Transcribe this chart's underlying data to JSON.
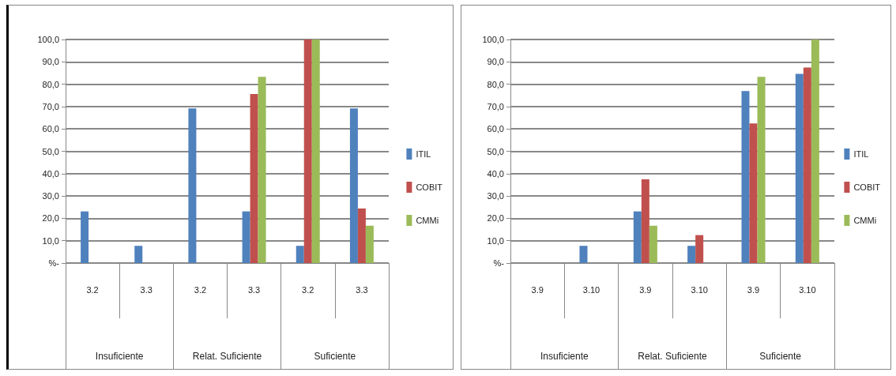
{
  "chart_data": [
    {
      "type": "bar",
      "categories": [
        "3.2",
        "3.3",
        "3.2",
        "3.3",
        "3.2",
        "3.3"
      ],
      "annotations": [
        "Insuficiente",
        "Relat. Suficiente",
        "Suficiente"
      ],
      "series": [
        {
          "name": "ITIL",
          "color": "#4f81bd",
          "values": [
            23.1,
            7.7,
            69.2,
            23.1,
            7.7,
            69.2
          ]
        },
        {
          "name": "COBIT",
          "color": "#c0504d",
          "values": [
            0,
            0,
            0,
            75.6,
            100,
            24.4
          ]
        },
        {
          "name": "CMMi",
          "color": "#9bbb59",
          "values": [
            0,
            0,
            0,
            83.3,
            100,
            16.7
          ]
        }
      ],
      "ylim": [
        0,
        100
      ],
      "yticks": [
        {
          "value": 0,
          "label": "%-"
        },
        {
          "value": 10,
          "label": "10,0"
        },
        {
          "value": 20,
          "label": "20,0"
        },
        {
          "value": 30,
          "label": "30,0"
        },
        {
          "value": 40,
          "label": "40,0"
        },
        {
          "value": 50,
          "label": "50,0"
        },
        {
          "value": 60,
          "label": "60,0"
        },
        {
          "value": 70,
          "label": "70,0"
        },
        {
          "value": 80,
          "label": "80,0"
        },
        {
          "value": 90,
          "label": "90,0"
        },
        {
          "value": 100,
          "label": "100,0"
        }
      ],
      "grid": "y",
      "legend": "right"
    },
    {
      "type": "bar",
      "categories": [
        "3.9",
        "3.10",
        "3.9",
        "3.10",
        "3.9",
        "3.10"
      ],
      "annotations": [
        "Insuficiente",
        "Relat. Suficiente",
        "Suficiente"
      ],
      "series": [
        {
          "name": "ITIL",
          "color": "#4f81bd",
          "values": [
            0,
            7.7,
            23.1,
            7.7,
            76.9,
            84.6
          ]
        },
        {
          "name": "COBIT",
          "color": "#c0504d",
          "values": [
            0,
            0,
            37.5,
            12.5,
            62.5,
            87.5
          ]
        },
        {
          "name": "CMMi",
          "color": "#9bbb59",
          "values": [
            0,
            0,
            16.7,
            0,
            83.3,
            100
          ]
        }
      ],
      "ylim": [
        0,
        100
      ],
      "yticks": [
        {
          "value": 0,
          "label": "%-"
        },
        {
          "value": 10,
          "label": "10,0"
        },
        {
          "value": 20,
          "label": "20,0"
        },
        {
          "value": 30,
          "label": "30,0"
        },
        {
          "value": 40,
          "label": "40,0"
        },
        {
          "value": 50,
          "label": "50,0"
        },
        {
          "value": 60,
          "label": "60,0"
        },
        {
          "value": 70,
          "label": "70,0"
        },
        {
          "value": 80,
          "label": "80,0"
        },
        {
          "value": 90,
          "label": "90,0"
        },
        {
          "value": 100,
          "label": "100,0"
        }
      ],
      "grid": "y",
      "legend": "right"
    }
  ]
}
